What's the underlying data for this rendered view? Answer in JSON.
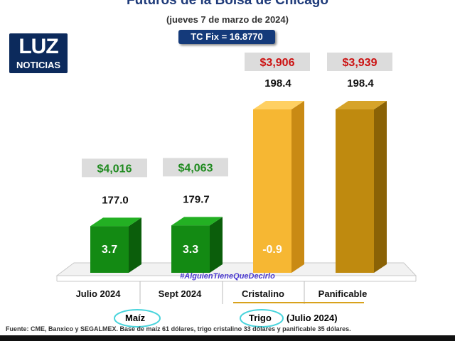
{
  "branding": {
    "logo_mark": "LUZ",
    "logo_text": "NOTICIAS"
  },
  "chart_data": {
    "type": "bar",
    "title": "Futuros de la Bolsa de Chicago",
    "subtitle": "(jueves 7 de marzo de 2024)",
    "exchange_rate": "TC Fix = 16.8770",
    "categories": [
      "Julio 2024",
      "Sept 2024",
      "Cristalino",
      "Panificable"
    ],
    "series": [
      {
        "values": [
          177.0,
          179.7,
          198.4,
          198.4
        ]
      }
    ],
    "prices_mxn": [
      "$4,016",
      "$4,063",
      "$3,906",
      "$3,939"
    ],
    "price_colors": [
      "#1e8a1e",
      "#1e8a1e",
      "#cc1111",
      "#cc1111"
    ],
    "bar_labels": [
      "3.7",
      "3.3",
      "-0.9",
      ""
    ],
    "bar_label_colors": [
      "#ffffff",
      "#ffffff",
      "#ffffff",
      "#ffffff"
    ],
    "bar_colors": [
      {
        "front": "#138a13",
        "side": "#0b5e0b",
        "top": "#23b023"
      },
      {
        "front": "#138a13",
        "side": "#0b5e0b",
        "top": "#23b023"
      },
      {
        "front": "#f6b733",
        "side": "#c98a14",
        "top": "#ffd062"
      },
      {
        "front": "#bf8a0f",
        "side": "#8a6206",
        "top": "#d6a32a"
      }
    ],
    "groups": [
      {
        "label": "Maíz",
        "note": ""
      },
      {
        "label": "Trigo",
        "note": "(Julio 2024)"
      }
    ],
    "watermark": "#AlguienTieneQueDecirlo",
    "footnote": "Fuente: CME, Banxico y SEGALMEX. Base de maíz 61 dólares, trigo cristalino 33 dólares y panificable 35 dólares.",
    "grid": false,
    "legend": "none"
  }
}
